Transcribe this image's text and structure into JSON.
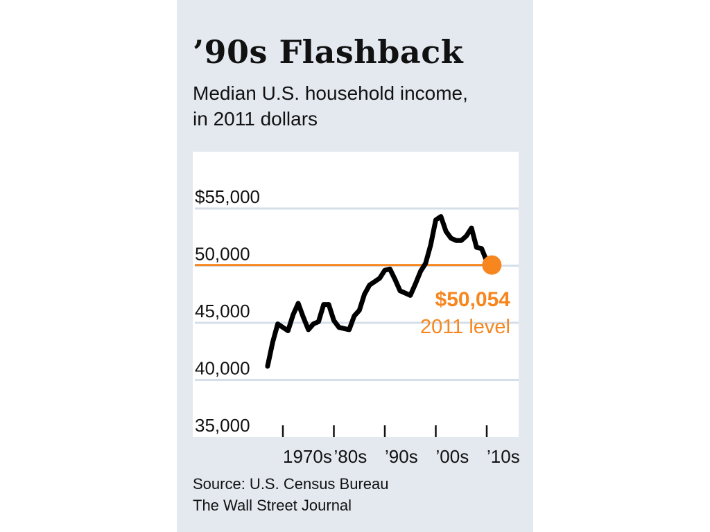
{
  "title": "’90s Flashback",
  "subtitle_lines": [
    "Median U.S. household income,",
    "in 2011 dollars"
  ],
  "source_lines": [
    "Source: U.S. Census Bureau",
    "The Wall Street Journal"
  ],
  "colors": {
    "panel": "#e4e9f0",
    "plot": "#ffffff",
    "line": "#000000",
    "highlight": "#f7861f",
    "grid": "#d6dfe9"
  },
  "chart_data": {
    "type": "line",
    "y_tick_labels": [
      "$55,000",
      "50,000",
      "45,000",
      "40,000",
      "35,000"
    ],
    "y_ticks": [
      55000,
      50000,
      45000,
      40000,
      35000
    ],
    "x_tick_labels": [
      "1970s",
      "’80s",
      "’90s",
      "’00s",
      "’10s"
    ],
    "x_ticks": [
      1970,
      1980,
      1990,
      2000,
      2010
    ],
    "xlim": [
      1966,
      2014
    ],
    "ylim": [
      35000,
      57500
    ],
    "grid": true,
    "series": [
      {
        "x": [
          1967,
          1968,
          1969,
          1970,
          1971,
          1972,
          1973,
          1974,
          1975,
          1976,
          1977,
          1978,
          1979,
          1980,
          1981,
          1982,
          1983,
          1984,
          1985,
          1986,
          1987,
          1988,
          1989,
          1990,
          1991,
          1992,
          1993,
          1994,
          1995,
          1996,
          1997,
          1998,
          1999,
          2000,
          2001,
          2002,
          2003,
          2004,
          2005,
          2006,
          2007,
          2008,
          2009,
          2010,
          2011
        ],
        "y": [
          41200,
          43300,
          44900,
          44600,
          44300,
          45700,
          46700,
          45500,
          44400,
          44900,
          45100,
          46600,
          46600,
          45200,
          44600,
          44500,
          44400,
          45600,
          46100,
          47500,
          48300,
          48600,
          48900,
          49600,
          49700,
          48800,
          47800,
          47600,
          47400,
          48400,
          49500,
          50200,
          51800,
          54000,
          54300,
          53000,
          52400,
          52200,
          52200,
          52600,
          53300,
          51600,
          51500,
          50400,
          50054
        ]
      }
    ],
    "reference_line": {
      "y": 50054
    },
    "highlight_point": {
      "x": 2011,
      "y": 50054,
      "value_label": "$50,054",
      "caption": "2011 level"
    }
  }
}
